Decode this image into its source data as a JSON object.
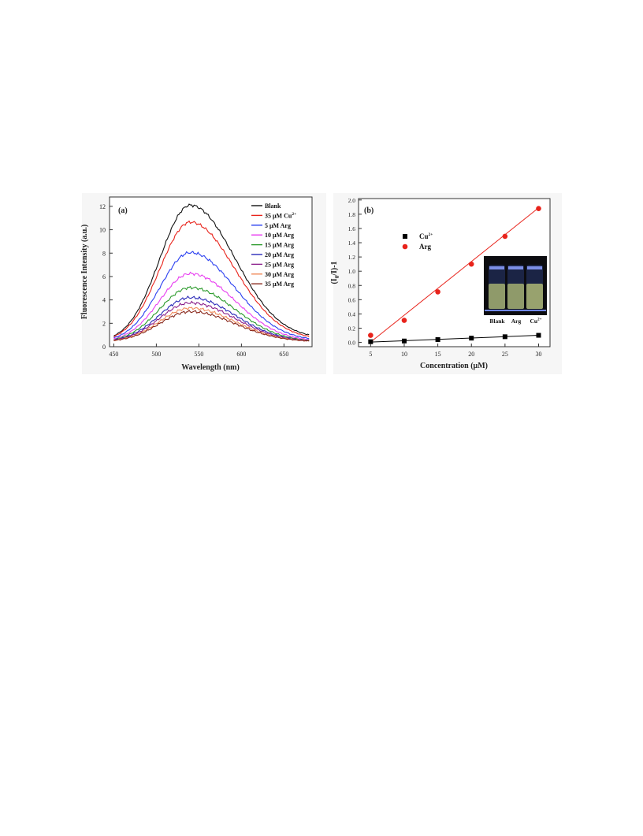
{
  "figure": {
    "panel_a": {
      "label": "(a)"
    },
    "panel_b": {
      "label": "(b)"
    }
  },
  "chart_data": [
    {
      "type": "line",
      "panel": "(a)",
      "xlabel": "Wavelength (nm)",
      "ylabel": "Fluorescence Intensity (a.u.)",
      "xlim": [
        445,
        683
      ],
      "ylim": [
        0,
        12.8
      ],
      "xticks": [
        450,
        500,
        550,
        600,
        650
      ],
      "yticks": [
        0,
        2,
        4,
        6,
        8,
        10,
        12
      ],
      "grid": false,
      "legend_position": "top-right",
      "x": [
        450,
        460,
        470,
        480,
        490,
        500,
        510,
        520,
        530,
        540,
        550,
        560,
        570,
        580,
        590,
        600,
        610,
        620,
        630,
        640,
        650,
        660,
        670,
        680
      ],
      "series": [
        {
          "name": "Blank",
          "color": "#111111",
          "peak": 12.1,
          "end": 0.7
        },
        {
          "name": "35 μM Cu2+",
          "name_base": "35 μM Cu",
          "name_sup": "2+",
          "color": "#e8231b",
          "peak": 10.65,
          "end": 0.6
        },
        {
          "name": "5 μM Arg",
          "color": "#2a3ff0",
          "peak": 8.05,
          "end": 0.5
        },
        {
          "name": "10 μM Arg",
          "color": "#e83ef0",
          "peak": 6.25,
          "end": 0.45
        },
        {
          "name": "15 μM Arg",
          "color": "#2a9a2a",
          "peak": 5.05,
          "end": 0.4
        },
        {
          "name": "20 μM Arg",
          "color": "#2a2ab8",
          "peak": 4.2,
          "end": 0.35
        },
        {
          "name": "25 μM Arg",
          "color": "#8a1e8a",
          "peak": 3.75,
          "end": 0.33
        },
        {
          "name": "30 μM Arg",
          "color": "#f08a5a",
          "peak": 3.3,
          "end": 0.3
        },
        {
          "name": "35 μM Arg",
          "color": "#8a2a1e",
          "peak": 3.0,
          "end": 0.28
        }
      ]
    },
    {
      "type": "scatter",
      "panel": "(b)",
      "xlabel": "Concentration (μM)",
      "ylabel": "(I0/I)-1",
      "ylabel_parts": {
        "open": "(I",
        "sub": "0",
        "close": "/I)-1"
      },
      "xlim": [
        3.2,
        31.7
      ],
      "ylim": [
        -0.06,
        2.02
      ],
      "xticks": [
        5,
        10,
        15,
        20,
        25,
        30
      ],
      "yticks": [
        0.0,
        0.2,
        0.4,
        0.6,
        0.8,
        1.0,
        1.2,
        1.4,
        1.6,
        1.8,
        2.0
      ],
      "grid": false,
      "legend_position": "upper-left",
      "series": [
        {
          "name": "Cu2+",
          "name_base": "Cu",
          "name_sup": "2+",
          "marker": "square",
          "color": "#000000",
          "x": [
            5,
            10,
            15,
            20,
            25,
            30
          ],
          "y": [
            0.01,
            0.02,
            0.04,
            0.06,
            0.08,
            0.1
          ],
          "fit": {
            "x": [
              5,
              30
            ],
            "y": [
              0.005,
              0.1
            ]
          }
        },
        {
          "name": "Arg",
          "marker": "circle",
          "color": "#e8231b",
          "x": [
            5,
            10,
            15,
            20,
            25,
            30
          ],
          "y": [
            0.1,
            0.31,
            0.71,
            1.1,
            1.49,
            1.88
          ],
          "fit": {
            "x": [
              5,
              30
            ],
            "y": [
              0.005,
              1.89
            ]
          }
        }
      ],
      "inset_photo": {
        "labels": [
          "Blank",
          "Arg",
          "Cu2+"
        ],
        "label_parts": [
          {
            "base": "Blank",
            "sup": ""
          },
          {
            "base": "Arg",
            "sup": ""
          },
          {
            "base": "Cu",
            "sup": "2+"
          }
        ]
      }
    }
  ]
}
